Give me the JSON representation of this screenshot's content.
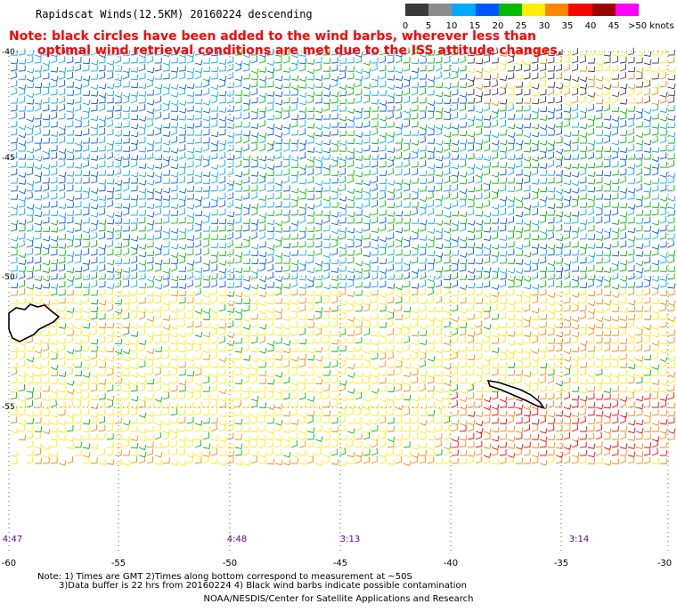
{
  "title": "Rapidscat Winds(12.5KM) 20160224 descending",
  "notes": [
    "Note: black circles have been added to the wind barbs, wherever less than",
    "optimal wind retrieval conditions are met due to the ISS attitude changes."
  ],
  "legend": {
    "labels": [
      "0",
      "5",
      "10",
      "15",
      "20",
      "25",
      "30",
      "35",
      "40",
      "45",
      ">50 knots"
    ],
    "colors": [
      "#3a3a3a",
      "#8c8c8c",
      "#00aaff",
      "#0055ff",
      "#00bb00",
      "#ffee00",
      "#ff8800",
      "#ff0000",
      "#990000",
      "#ff00ff",
      "#660099"
    ]
  },
  "map": {
    "lat_labels": [
      "-40",
      "-45",
      "-50",
      "-55"
    ],
    "lon_labels": [
      "-60",
      "-55",
      "-50",
      "-45",
      "-40",
      "-35",
      "-30"
    ],
    "time_labels": [
      "4:47",
      "4:48",
      "3:13",
      "3:14"
    ]
  },
  "footer": {
    "line1": "Note: 1) Times are GMT 2)Times along bottom correspond to measurement at ~50S",
    "line2": "3)Data buffer is 22 hrs from 20160224 4) Black wind barbs indicate possible contamination",
    "credit": "NOAA/NESDIS/Center for Satellite Applications and Research"
  }
}
